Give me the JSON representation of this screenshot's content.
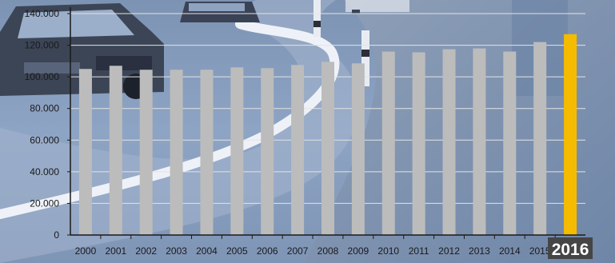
{
  "chart_data": {
    "type": "bar",
    "title": "",
    "xlabel": "",
    "ylabel": "",
    "categories": [
      "2000",
      "2001",
      "2002",
      "2003",
      "2004",
      "2005",
      "2006",
      "2007",
      "2008",
      "2009",
      "2010",
      "2011",
      "2012",
      "2013",
      "2014",
      "2015",
      "2016"
    ],
    "values": [
      105000,
      107000,
      104500,
      104500,
      104500,
      106000,
      105500,
      107500,
      109500,
      108500,
      116000,
      115500,
      117500,
      118000,
      116000,
      122000,
      127000
    ],
    "y_ticks": [
      "0",
      "20.000",
      "40.000",
      "60.000",
      "80.000",
      "100.000",
      "120.000",
      "140.000"
    ],
    "ylim": [
      0,
      140000
    ],
    "grid": true,
    "highlight_category": "2016",
    "colors": {
      "bar": "#bcbcbc",
      "bar_highlight": "#f5bb00",
      "highlight_label_bg": "#454545",
      "gridline": "#e3e3e3",
      "axis": "#1a1a1a"
    },
    "background": "road photograph with cars"
  }
}
